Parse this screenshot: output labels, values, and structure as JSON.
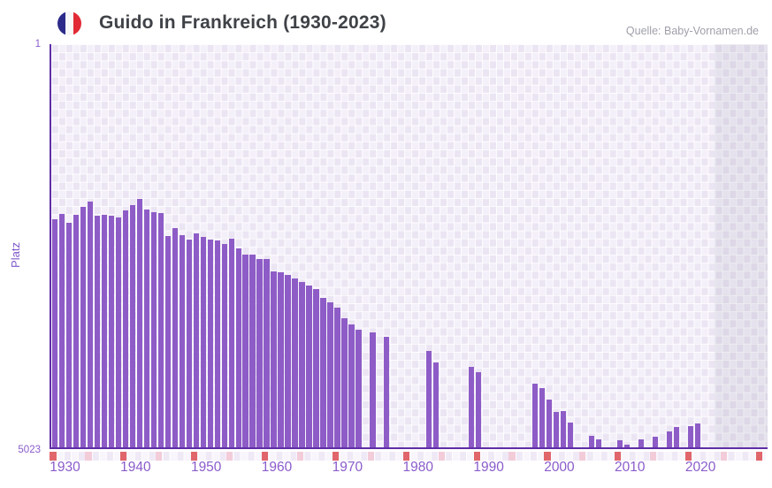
{
  "header": {
    "title": "Guido in Frankreich (1930-2023)",
    "source": "Quelle: Baby-Vornamen.de"
  },
  "chart_data": {
    "type": "bar",
    "title": "Guido in Frankreich (1930-2023)",
    "xlabel": "",
    "ylabel": "Platz",
    "x_range": [
      1930,
      2030
    ],
    "x_ticks": [
      "1930",
      "1940",
      "1950",
      "1960",
      "1970",
      "1980",
      "1990",
      "2000",
      "2010",
      "2020"
    ],
    "y_axis": {
      "top_label": "1",
      "bottom_label": "5023",
      "min": 1,
      "max": 5023,
      "inverted": true
    },
    "grid": "checkerboard",
    "legend": "none",
    "notes": "Bars grow downward-ranked: taller bar = better (lower) Platz. Years without a bar had no ranking. Shaded band at right marks years beyond available data.",
    "decade_markers_red": [
      1930,
      1940,
      1950,
      1960,
      1970,
      1980,
      1990,
      2000,
      2010,
      2020,
      2030
    ],
    "mid_decade_markers_pink": [
      1935,
      1945,
      1955,
      1965,
      1975,
      1985,
      1995,
      2005,
      2015,
      2025
    ],
    "series": [
      {
        "name": "Guido",
        "points": [
          {
            "year": 1930,
            "rank": 2185
          },
          {
            "year": 1931,
            "rank": 2115
          },
          {
            "year": 1932,
            "rank": 2225
          },
          {
            "year": 1933,
            "rank": 2130
          },
          {
            "year": 1934,
            "rank": 2030
          },
          {
            "year": 1935,
            "rank": 1965
          },
          {
            "year": 1936,
            "rank": 2140
          },
          {
            "year": 1937,
            "rank": 2125
          },
          {
            "year": 1938,
            "rank": 2140
          },
          {
            "year": 1939,
            "rank": 2160
          },
          {
            "year": 1940,
            "rank": 2075
          },
          {
            "year": 1941,
            "rank": 2010
          },
          {
            "year": 1942,
            "rank": 1930
          },
          {
            "year": 1943,
            "rank": 2060
          },
          {
            "year": 1944,
            "rank": 2095
          },
          {
            "year": 1945,
            "rank": 2105
          },
          {
            "year": 1946,
            "rank": 2390
          },
          {
            "year": 1947,
            "rank": 2290
          },
          {
            "year": 1948,
            "rank": 2380
          },
          {
            "year": 1949,
            "rank": 2435
          },
          {
            "year": 1950,
            "rank": 2360
          },
          {
            "year": 1951,
            "rank": 2400
          },
          {
            "year": 1952,
            "rank": 2435
          },
          {
            "year": 1953,
            "rank": 2445
          },
          {
            "year": 1954,
            "rank": 2490
          },
          {
            "year": 1955,
            "rank": 2425
          },
          {
            "year": 1956,
            "rank": 2545
          },
          {
            "year": 1957,
            "rank": 2630
          },
          {
            "year": 1958,
            "rank": 2630
          },
          {
            "year": 1959,
            "rank": 2675
          },
          {
            "year": 1960,
            "rank": 2675
          },
          {
            "year": 1961,
            "rank": 2840
          },
          {
            "year": 1962,
            "rank": 2850
          },
          {
            "year": 1963,
            "rank": 2875
          },
          {
            "year": 1964,
            "rank": 2920
          },
          {
            "year": 1965,
            "rank": 2970
          },
          {
            "year": 1966,
            "rank": 3015
          },
          {
            "year": 1967,
            "rank": 3060
          },
          {
            "year": 1968,
            "rank": 3170
          },
          {
            "year": 1969,
            "rank": 3225
          },
          {
            "year": 1970,
            "rank": 3290
          },
          {
            "year": 1971,
            "rank": 3420
          },
          {
            "year": 1972,
            "rank": 3500
          },
          {
            "year": 1973,
            "rank": 3565
          },
          {
            "year": 1975,
            "rank": 3595
          },
          {
            "year": 1977,
            "rank": 3650
          },
          {
            "year": 1983,
            "rank": 3825
          },
          {
            "year": 1984,
            "rank": 3970
          },
          {
            "year": 1989,
            "rank": 4025
          },
          {
            "year": 1990,
            "rank": 4090
          },
          {
            "year": 1998,
            "rank": 4235
          },
          {
            "year": 1999,
            "rank": 4290
          },
          {
            "year": 2000,
            "rank": 4430
          },
          {
            "year": 2001,
            "rank": 4585
          },
          {
            "year": 2002,
            "rank": 4575
          },
          {
            "year": 2003,
            "rank": 4715
          },
          {
            "year": 2006,
            "rank": 4890
          },
          {
            "year": 2007,
            "rank": 4925
          },
          {
            "year": 2010,
            "rank": 4935
          },
          {
            "year": 2011,
            "rank": 4990
          },
          {
            "year": 2013,
            "rank": 4925
          },
          {
            "year": 2015,
            "rank": 4900
          },
          {
            "year": 2017,
            "rank": 4835
          },
          {
            "year": 2018,
            "rank": 4770
          },
          {
            "year": 2020,
            "rank": 4760
          },
          {
            "year": 2021,
            "rank": 4735
          }
        ]
      }
    ]
  },
  "colors": {
    "bar": "#8e5cc6",
    "axis": "#5f2ea6",
    "tick_label": "#8b5ccb",
    "y_label": "#7e57c9",
    "checker_dark": "#ebe5f3",
    "checker_light": "#f4f0fa",
    "decade_marker": "#e0666b",
    "mid_decade_marker": "#f3ccd9",
    "future_shade": "rgba(99,94,130,0.10)",
    "title_text": "#3f4247",
    "source_text": "#9fa0aa",
    "flag_blue": "#2c2b8a",
    "flag_red": "#e22a36"
  }
}
